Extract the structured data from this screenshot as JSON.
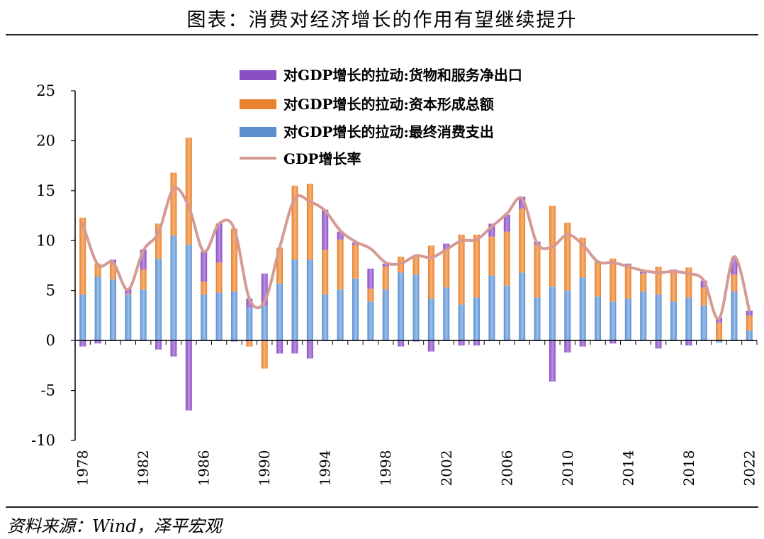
{
  "title": "图表：消费对经济增长的作用有望继续提升",
  "source": "资料来源：Wind，泽平宏观",
  "colors": {
    "net_exports": "#8a4fc2",
    "capital_formation": "#e8822e",
    "final_consumption": "#5b8fd0",
    "gdp_line": "#d69a94",
    "axis": "#000000"
  },
  "chart_data": {
    "type": "bar",
    "stacked": true,
    "title": "",
    "xlabel": "",
    "ylabel": "",
    "ylim": [
      -10,
      25
    ],
    "yticks": [
      "-10",
      "-5",
      "0",
      "5",
      "10",
      "15",
      "20",
      "25"
    ],
    "xtick_labels": [
      "1978",
      "1982",
      "1986",
      "1990",
      "1994",
      "1998",
      "2002",
      "2006",
      "2010",
      "2014",
      "2018",
      "2022"
    ],
    "legend_position": "top-center",
    "grid": false,
    "categories": [
      "1978",
      "1979",
      "1980",
      "1981",
      "1982",
      "1983",
      "1984",
      "1985",
      "1986",
      "1987",
      "1988",
      "1989",
      "1990",
      "1991",
      "1992",
      "1993",
      "1994",
      "1995",
      "1996",
      "1997",
      "1998",
      "1999",
      "2000",
      "2001",
      "2002",
      "2003",
      "2004",
      "2005",
      "2006",
      "2007",
      "2008",
      "2009",
      "2010",
      "2011",
      "2012",
      "2013",
      "2014",
      "2015",
      "2016",
      "2017",
      "2018",
      "2019",
      "2020",
      "2021",
      "2022"
    ],
    "series": [
      {
        "name": "对GDP增长的拉动:货物和服务净出口",
        "kind": "bar",
        "values": [
          -0.6,
          -0.3,
          0.3,
          0.5,
          2.0,
          -0.9,
          -1.6,
          -7.0,
          3.0,
          3.9,
          -0.1,
          0.9,
          3.2,
          -1.3,
          -1.3,
          -1.8,
          4.0,
          0.8,
          0.2,
          2.0,
          0.3,
          -0.6,
          -0.1,
          -1.1,
          0.6,
          -0.5,
          -0.5,
          1.3,
          1.7,
          1.2,
          0.3,
          -4.1,
          -1.2,
          -0.6,
          0.1,
          -0.3,
          0.1,
          0.2,
          -0.8,
          0.2,
          -0.5,
          0.7,
          0.5,
          1.7,
          0.5
        ]
      },
      {
        "name": "对GDP增长的拉动:资本形成总额",
        "kind": "bar",
        "values": [
          7.7,
          1.3,
          1.7,
          0.1,
          2.0,
          3.5,
          6.3,
          10.7,
          1.3,
          3.0,
          6.3,
          -0.6,
          -2.8,
          3.6,
          7.4,
          7.6,
          4.5,
          5.0,
          3.4,
          1.3,
          2.3,
          1.6,
          1.9,
          5.3,
          3.8,
          7.0,
          6.3,
          3.9,
          5.4,
          6.4,
          5.3,
          8.1,
          6.8,
          4.0,
          3.4,
          4.3,
          3.4,
          1.8,
          2.8,
          3.0,
          3.0,
          1.8,
          1.8,
          1.7,
          1.5
        ]
      },
      {
        "name": "对GDP增长的拉动:最终消费支出",
        "kind": "bar",
        "values": [
          4.6,
          6.4,
          6.1,
          4.6,
          5.1,
          8.2,
          10.5,
          9.6,
          4.6,
          4.8,
          4.9,
          3.3,
          3.5,
          5.7,
          8.1,
          8.1,
          4.6,
          5.1,
          6.2,
          3.9,
          5.1,
          6.8,
          6.6,
          4.2,
          5.3,
          3.6,
          4.3,
          6.5,
          5.5,
          6.8,
          4.3,
          5.4,
          5.0,
          6.3,
          4.4,
          3.9,
          4.2,
          4.9,
          4.6,
          3.9,
          4.3,
          3.5,
          -0.2,
          4.9,
          1.0
        ]
      },
      {
        "name": "GDP增长率",
        "kind": "line",
        "values": [
          11.7,
          7.6,
          7.8,
          5.1,
          9.0,
          10.8,
          15.2,
          13.4,
          8.9,
          11.7,
          11.2,
          4.2,
          3.9,
          9.3,
          14.2,
          13.9,
          13.0,
          11.0,
          9.9,
          9.2,
          7.8,
          7.7,
          8.5,
          8.3,
          9.1,
          10.0,
          10.1,
          11.4,
          12.7,
          14.2,
          9.7,
          9.4,
          10.6,
          9.6,
          7.9,
          7.8,
          7.4,
          7.0,
          6.8,
          6.9,
          6.7,
          6.0,
          2.2,
          8.4,
          3.0
        ]
      }
    ]
  }
}
